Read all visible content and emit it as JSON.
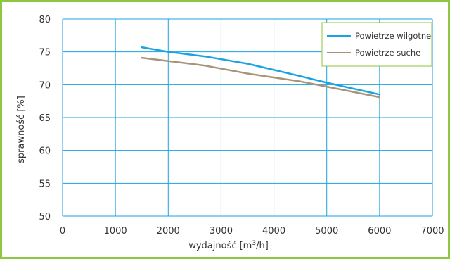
{
  "chart_data": {
    "type": "line",
    "title": "",
    "xlabel": "wydajność [m",
    "xlabel_sup": "3",
    "xlabel_tail": "/h]",
    "ylabel": "sprawność [%]",
    "xlim": [
      0,
      7000
    ],
    "ylim": [
      50,
      80
    ],
    "x_ticks": [
      0,
      1000,
      2000,
      3000,
      4000,
      5000,
      6000,
      7000
    ],
    "y_ticks": [
      50,
      55,
      60,
      65,
      70,
      75,
      80
    ],
    "grid": true,
    "legend_position": "top-right",
    "series": [
      {
        "name": "Powietrze wilgotne",
        "color": "#1aa3e0",
        "x": [
          1500,
          2000,
          2700,
          3500,
          4500,
          5000,
          6000
        ],
        "y": [
          75.7,
          75.0,
          74.3,
          73.2,
          71.3,
          70.3,
          68.5
        ]
      },
      {
        "name": "Powietrze suche",
        "color": "#a89479",
        "x": [
          1500,
          2000,
          2700,
          3500,
          4500,
          5000,
          6000
        ],
        "y": [
          74.1,
          73.6,
          72.9,
          71.7,
          70.5,
          69.7,
          68.1
        ]
      }
    ]
  },
  "colors": {
    "frame": "#8dc63f",
    "grid": "#1aa3e0",
    "text": "#333333"
  }
}
